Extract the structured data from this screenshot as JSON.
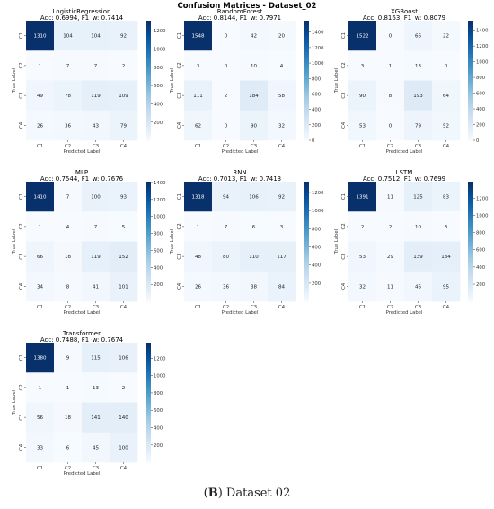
{
  "figure_title": "Confusion Matrices - Dataset_02",
  "caption": {
    "prefix": "(",
    "bold": "B",
    "rest": ") Dataset 02"
  },
  "colormap": [
    "#f7fbff",
    "#deebf7",
    "#c6dbef",
    "#9ecae1",
    "#6baed6",
    "#4292c6",
    "#2171b5",
    "#08519c",
    "#08306b"
  ],
  "chart_data": [
    {
      "type": "heatmap",
      "title": "LogisticRegression",
      "subtitle": "Acc: 0.6994, F1_w: 0.7414",
      "xlabel": "Predicted Label",
      "ylabel": "True Label",
      "x_categories": [
        "C1",
        "C2",
        "C3",
        "C4"
      ],
      "y_categories": [
        "C1",
        "C2",
        "C3",
        "C4"
      ],
      "values": [
        [
          1310,
          104,
          104,
          92
        ],
        [
          1,
          7,
          7,
          2
        ],
        [
          49,
          78,
          119,
          109
        ],
        [
          26,
          36,
          43,
          79
        ]
      ],
      "colorbar_ticks": [
        200,
        400,
        600,
        800,
        1000,
        1200
      ],
      "colorbar_range": [
        1,
        1310
      ]
    },
    {
      "type": "heatmap",
      "title": "RandomForest",
      "subtitle": "Acc: 0.8144, F1_w: 0.7971",
      "xlabel": "Predicted Label",
      "ylabel": "True Label",
      "x_categories": [
        "C1",
        "C2",
        "C3",
        "C4"
      ],
      "y_categories": [
        "C1",
        "C2",
        "C3",
        "C4"
      ],
      "values": [
        [
          1548,
          0,
          42,
          20
        ],
        [
          3,
          0,
          10,
          4
        ],
        [
          111,
          2,
          184,
          58
        ],
        [
          62,
          0,
          90,
          32
        ]
      ],
      "colorbar_ticks": [
        0,
        200,
        400,
        600,
        800,
        1000,
        1200,
        1400
      ],
      "colorbar_range": [
        0,
        1548
      ]
    },
    {
      "type": "heatmap",
      "title": "XGBoost",
      "subtitle": "Acc: 0.8163, F1_w: 0.8079",
      "xlabel": "Predicted Label",
      "ylabel": "True Label",
      "x_categories": [
        "C1",
        "C2",
        "C3",
        "C4"
      ],
      "y_categories": [
        "C1",
        "C2",
        "C3",
        "C4"
      ],
      "values": [
        [
          1522,
          0,
          66,
          22
        ],
        [
          3,
          1,
          13,
          0
        ],
        [
          90,
          8,
          193,
          64
        ],
        [
          53,
          0,
          79,
          52
        ]
      ],
      "colorbar_ticks": [
        0,
        200,
        400,
        600,
        800,
        1000,
        1200,
        1400
      ],
      "colorbar_range": [
        0,
        1522
      ]
    },
    {
      "type": "heatmap",
      "title": "MLP",
      "subtitle": "Acc: 0.7544, F1_w: 0.7676",
      "xlabel": "Predicted Label",
      "ylabel": "True Label",
      "x_categories": [
        "C1",
        "C2",
        "C3",
        "C4"
      ],
      "y_categories": [
        "C1",
        "C2",
        "C3",
        "C4"
      ],
      "values": [
        [
          1410,
          7,
          100,
          93
        ],
        [
          1,
          4,
          7,
          5
        ],
        [
          66,
          18,
          119,
          152
        ],
        [
          34,
          8,
          41,
          101
        ]
      ],
      "colorbar_ticks": [
        200,
        400,
        600,
        800,
        1000,
        1200,
        1400
      ],
      "colorbar_range": [
        1,
        1410
      ]
    },
    {
      "type": "heatmap",
      "title": "RNN",
      "subtitle": "Acc: 0.7013, F1_w: 0.7413",
      "xlabel": "Predicted Label",
      "ylabel": "True Label",
      "x_categories": [
        "C1",
        "C2",
        "C3",
        "C4"
      ],
      "y_categories": [
        "C1",
        "C2",
        "C3",
        "C4"
      ],
      "values": [
        [
          1318,
          94,
          106,
          92
        ],
        [
          1,
          7,
          6,
          3
        ],
        [
          48,
          80,
          110,
          117
        ],
        [
          26,
          36,
          38,
          84
        ]
      ],
      "colorbar_ticks": [
        200,
        400,
        600,
        800,
        1000,
        1200
      ],
      "colorbar_range": [
        1,
        1318
      ]
    },
    {
      "type": "heatmap",
      "title": "LSTM",
      "subtitle": "Acc: 0.7512, F1_w: 0.7699",
      "xlabel": "Predicted Label",
      "ylabel": "True Label",
      "x_categories": [
        "C1",
        "C2",
        "C3",
        "C4"
      ],
      "y_categories": [
        "C1",
        "C2",
        "C3",
        "C4"
      ],
      "values": [
        [
          1391,
          11,
          125,
          83
        ],
        [
          2,
          2,
          10,
          3
        ],
        [
          53,
          29,
          139,
          134
        ],
        [
          32,
          11,
          46,
          95
        ]
      ],
      "colorbar_ticks": [
        200,
        400,
        600,
        800,
        1000,
        1200
      ],
      "colorbar_range": [
        2,
        1391
      ]
    },
    {
      "type": "heatmap",
      "title": "Transformer",
      "subtitle": "Acc: 0.7488, F1_w: 0.7674",
      "xlabel": "Predicted Label",
      "ylabel": "True Label",
      "x_categories": [
        "C1",
        "C2",
        "C3",
        "C4"
      ],
      "y_categories": [
        "C1",
        "C2",
        "C3",
        "C4"
      ],
      "values": [
        [
          1380,
          9,
          115,
          106
        ],
        [
          1,
          1,
          13,
          2
        ],
        [
          56,
          18,
          141,
          140
        ],
        [
          33,
          6,
          45,
          100
        ]
      ],
      "colorbar_ticks": [
        200,
        400,
        600,
        800,
        1000,
        1200
      ],
      "colorbar_range": [
        1,
        1380
      ]
    }
  ]
}
